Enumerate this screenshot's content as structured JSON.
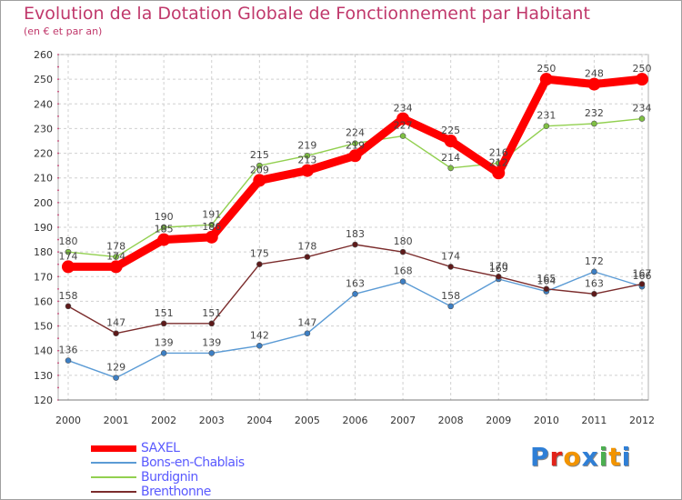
{
  "title": "Evolution de la Dotation Globale de Fonctionnement par Habitant",
  "subtitle": "(en € et par an)",
  "logo": {
    "text": "Proxiti",
    "colors": [
      "#2f7fd6",
      "#e2231a",
      "#f29400",
      "#2f7fd6",
      "#4caf50",
      "#f29400",
      "#2f7fd6"
    ]
  },
  "chart_data": {
    "type": "line",
    "title": "Evolution de la Dotation Globale de Fonctionnement par Habitant",
    "subtitle": "(en € et par an)",
    "xlabel": "",
    "ylabel": "",
    "ylim": [
      120,
      260
    ],
    "yticks": [
      120,
      130,
      140,
      150,
      160,
      170,
      180,
      190,
      200,
      210,
      220,
      230,
      240,
      250,
      260
    ],
    "grid": true,
    "legend_position": "bottom-left",
    "categories": [
      "2000",
      "2001",
      "2002",
      "2003",
      "2004",
      "2005",
      "2006",
      "2007",
      "2008",
      "2009",
      "2010",
      "2011",
      "2012"
    ],
    "series": [
      {
        "name": "SAXEL",
        "color": "#ff0000",
        "emphasis": "thick",
        "values": [
          174,
          174,
          185,
          186,
          209,
          213,
          219,
          234,
          225,
          212,
          250,
          248,
          250
        ],
        "labels": [
          "174",
          "174",
          "185",
          "186",
          "209",
          "213",
          "219",
          "234",
          "225",
          "212",
          "250",
          "248",
          "250"
        ]
      },
      {
        "name": "Bons-en-Chablais",
        "color": "#5b9bd5",
        "emphasis": "thin",
        "values": [
          136,
          129,
          139,
          139,
          142,
          147,
          163,
          168,
          158,
          169,
          164,
          172,
          166
        ],
        "labels": [
          "136",
          "129",
          "139",
          "139",
          "142",
          "147",
          "163",
          "168",
          "158",
          "169",
          "164",
          "172",
          "166"
        ]
      },
      {
        "name": "Burdignin",
        "color": "#92d050",
        "emphasis": "thin",
        "values": [
          180,
          178,
          190,
          191,
          215,
          219,
          224,
          227,
          214,
          216,
          231,
          232,
          234
        ],
        "labels": [
          "180",
          "178",
          "190",
          "191",
          "215",
          "219",
          "224",
          "227",
          "214",
          "216",
          "231",
          "232",
          "234"
        ]
      },
      {
        "name": "Brenthonne",
        "color": "#7b2c2c",
        "emphasis": "thin",
        "values": [
          158,
          147,
          151,
          151,
          175,
          178,
          183,
          180,
          174,
          170,
          165,
          163,
          167
        ],
        "labels": [
          "158",
          "147",
          "151",
          "151",
          "175",
          "178",
          "183",
          "180",
          "174",
          "170",
          "165",
          "163",
          "167"
        ]
      }
    ]
  }
}
